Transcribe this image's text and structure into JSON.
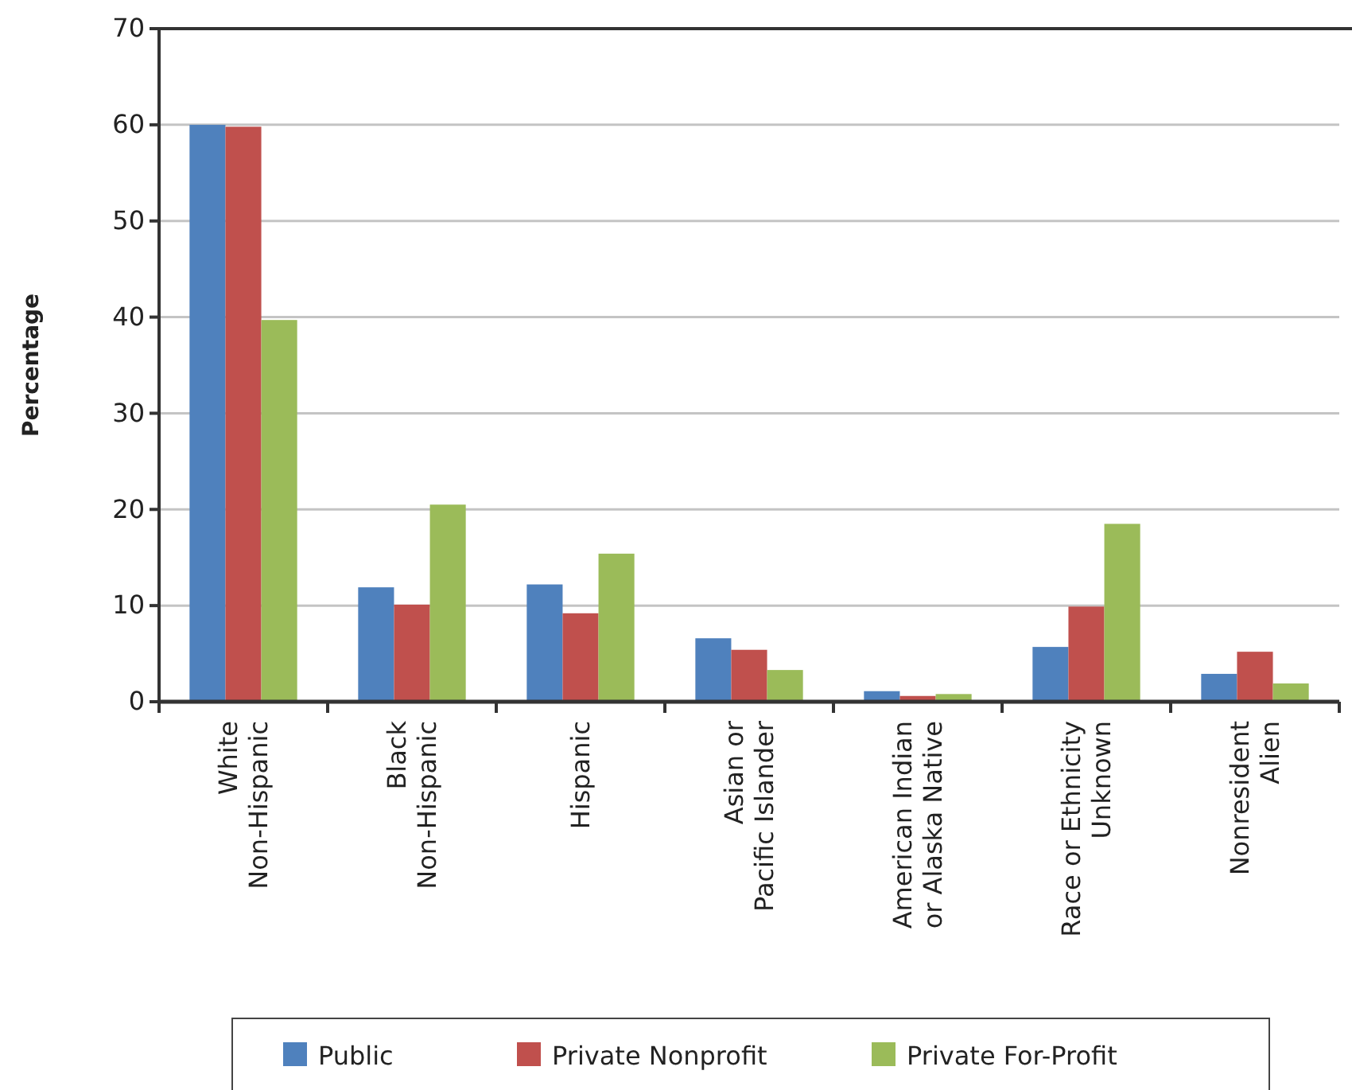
{
  "chart_data": {
    "type": "bar",
    "ylabel": "Percentage",
    "categories": [
      "White\nNon-Hispanic",
      "Black\nNon-Hispanic",
      "Hispanic",
      "Asian or\nPacific Islander",
      "American Indian\nor Alaska Native",
      "Race or Ethnicity\nUnknown",
      "Nonresident\nAlien"
    ],
    "series": [
      {
        "name": "Public",
        "color": "#4f81bd",
        "values": [
          60.0,
          11.9,
          12.2,
          6.6,
          1.1,
          5.7,
          2.9
        ]
      },
      {
        "name": "Private Nonprofit",
        "color": "#c0504d",
        "values": [
          59.8,
          10.1,
          9.2,
          5.4,
          0.6,
          9.9,
          5.2
        ]
      },
      {
        "name": "Private For-Profit",
        "color": "#9bbb59",
        "values": [
          39.7,
          20.5,
          15.4,
          3.3,
          0.8,
          18.5,
          1.9
        ]
      }
    ],
    "ylim": [
      0,
      70
    ],
    "yticks": [
      0,
      10,
      20,
      30,
      40,
      50,
      60,
      70
    ],
    "grid": "y",
    "legend": "bottom"
  }
}
